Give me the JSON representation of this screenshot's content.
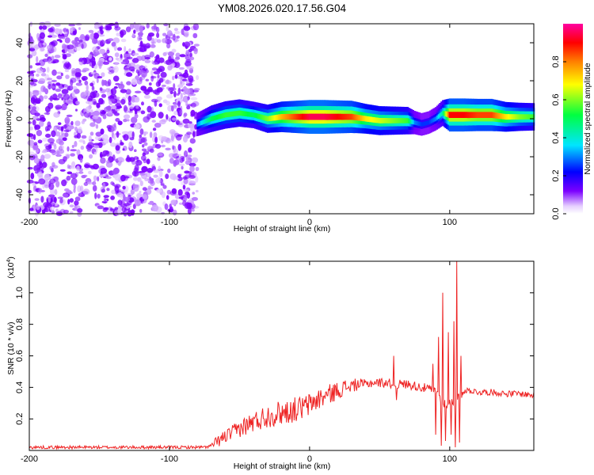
{
  "title": "YM08.2026.020.17.56.G04",
  "colors": {
    "snr_line": "#ee2222",
    "frame": "#000000",
    "colormap": [
      "#ffffff",
      "#c080ff",
      "#7b00ff",
      "#0000ff",
      "#00e5ff",
      "#00ff40",
      "#ffff00",
      "#ff8000",
      "#ff0000",
      "#ff00a0"
    ]
  },
  "chart_data": [
    {
      "type": "heatmap",
      "title": "YM08.2026.020.17.56.G04",
      "xlabel": "Height of straight line (km)",
      "ylabel": "Frequency (Hz)",
      "xlim": [
        -200,
        160
      ],
      "ylim": [
        -50,
        50
      ],
      "x_ticks": [
        "-200",
        "-100",
        "0",
        "100"
      ],
      "x_tick_values": [
        -200,
        -100,
        0,
        100
      ],
      "y_ticks": [
        "-40",
        "-20",
        "0",
        "20",
        "40"
      ],
      "y_tick_values": [
        -40,
        -20,
        0,
        20,
        40
      ],
      "noise_region_km": [
        -200,
        -80
      ],
      "noise_level": 0.12,
      "ridge": {
        "description": "Normalized spectral amplitude peak near 0 Hz tracking the signal",
        "x": [
          -80,
          -70,
          -60,
          -50,
          -40,
          -30,
          -20,
          -10,
          0,
          10,
          20,
          30,
          40,
          50,
          60,
          70,
          75,
          80,
          85,
          90,
          95,
          100,
          110,
          120,
          130,
          140,
          150,
          160
        ],
        "freq_hz": [
          -3,
          0,
          2,
          3,
          2,
          0,
          1,
          1,
          1,
          1,
          1,
          1,
          0,
          -1,
          -1,
          -1,
          -2,
          -3,
          -2,
          0,
          3,
          2,
          2,
          2,
          2,
          1,
          1,
          1
        ],
        "amplitude": [
          0.3,
          0.5,
          0.55,
          0.55,
          0.5,
          0.6,
          0.75,
          0.85,
          0.95,
          0.95,
          0.9,
          0.85,
          0.7,
          0.65,
          0.6,
          0.55,
          0.3,
          0.25,
          0.25,
          0.3,
          0.45,
          0.9,
          0.9,
          0.85,
          0.85,
          0.7,
          0.6,
          0.55
        ]
      },
      "colorbar": {
        "label": "Normalized spectral amplitude",
        "range": [
          0,
          1
        ],
        "tick_values": [
          0.0,
          0.2,
          0.4,
          0.6,
          0.8
        ],
        "tick_labels": [
          "0.0",
          "0.2",
          "0.4",
          "0.6",
          "0.8"
        ]
      }
    },
    {
      "type": "line",
      "xlabel": "Height of straight line (km)",
      "ylabel": "SNR (10 * v/v)",
      "y_multiplier": "(x10",
      "y_multiplier_exp": "4",
      "y_multiplier_close": ")",
      "xlim": [
        -200,
        160
      ],
      "ylim": [
        0,
        1.2
      ],
      "x_ticks": [
        "-200",
        "-100",
        "0",
        "100"
      ],
      "x_tick_values": [
        -200,
        -100,
        0,
        100
      ],
      "y_ticks": [
        "0.2",
        "0.4",
        "0.6",
        "0.8",
        "1.0"
      ],
      "y_tick_values": [
        0.2,
        0.4,
        0.6,
        0.8,
        1.0
      ],
      "series": [
        {
          "name": "SNR",
          "x": [
            -200,
            -180,
            -160,
            -140,
            -120,
            -100,
            -85,
            -75,
            -70,
            -65,
            -60,
            -55,
            -50,
            -45,
            -40,
            -35,
            -30,
            -25,
            -20,
            -15,
            -10,
            -5,
            0,
            5,
            10,
            15,
            20,
            25,
            30,
            35,
            40,
            45,
            50,
            55,
            60,
            65,
            70,
            75,
            80,
            85,
            90,
            95,
            100,
            105,
            110,
            115,
            120,
            130,
            140,
            150,
            160
          ],
          "values": [
            0.02,
            0.02,
            0.02,
            0.02,
            0.02,
            0.02,
            0.02,
            0.02,
            0.03,
            0.06,
            0.09,
            0.11,
            0.14,
            0.16,
            0.18,
            0.2,
            0.22,
            0.23,
            0.24,
            0.25,
            0.26,
            0.27,
            0.29,
            0.32,
            0.34,
            0.36,
            0.38,
            0.4,
            0.41,
            0.42,
            0.42,
            0.43,
            0.43,
            0.43,
            0.42,
            0.42,
            0.42,
            0.41,
            0.4,
            0.39,
            0.38,
            0.3,
            0.3,
            0.32,
            0.38,
            0.38,
            0.37,
            0.37,
            0.36,
            0.36,
            0.35
          ],
          "spikes": [
            {
              "x": 60,
              "value": 0.6
            },
            {
              "x": 62,
              "value": 0.32
            },
            {
              "x": 88,
              "value": 0.55
            },
            {
              "x": 90,
              "value": 0.1
            },
            {
              "x": 92,
              "value": 0.72
            },
            {
              "x": 94,
              "value": 0.03
            },
            {
              "x": 95,
              "value": 1.0
            },
            {
              "x": 97,
              "value": 0.06
            },
            {
              "x": 99,
              "value": 0.75
            },
            {
              "x": 101,
              "value": 0.1
            },
            {
              "x": 103,
              "value": 0.82
            },
            {
              "x": 104,
              "value": 0.02
            },
            {
              "x": 105,
              "value": 1.2
            },
            {
              "x": 107,
              "value": 0.05
            },
            {
              "x": 108,
              "value": 0.6
            }
          ]
        }
      ]
    }
  ]
}
